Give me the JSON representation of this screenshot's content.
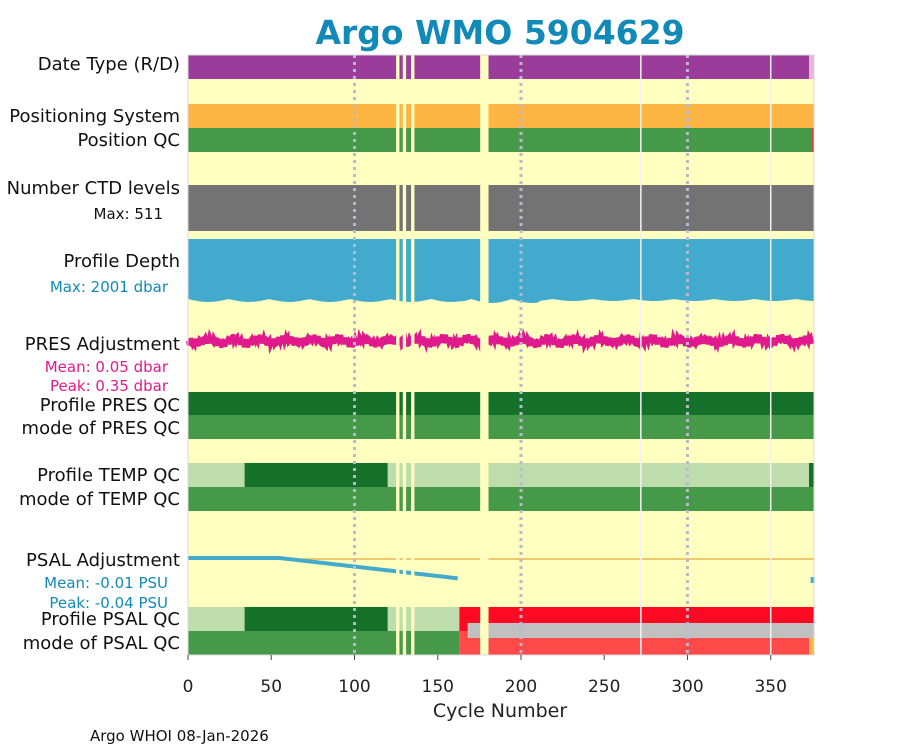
{
  "chart_data": {
    "type": "timeline",
    "title": "Argo WMO 5904629",
    "xlabel": "Cycle Number",
    "xlim": [
      0,
      376
    ],
    "xticks": [
      0,
      50,
      100,
      150,
      200,
      250,
      300,
      350
    ],
    "footer": "Argo WHOI 08-Jan-2026",
    "colors": {
      "background": "#ffffc0",
      "title": "#118ab8",
      "pink": "#e01a8c",
      "blue": "#42aacd",
      "purple": "#9b3c9b",
      "orange": "#fdb643",
      "green": "#47994a",
      "dark_green": "#157029",
      "light_green": "#bfdcad",
      "gray": "#737373",
      "red": "#ff0a22",
      "light_red": "#ff4a4a",
      "light_gray": "#c0c0c0",
      "zero_line": "#e9b552"
    },
    "gaps": [
      126,
      130,
      135,
      176,
      177,
      178,
      179,
      180
    ],
    "rows": [
      {
        "key": "date_type",
        "label": "Date Type (R/D)",
        "color": "purple",
        "segments": [
          [
            0,
            373,
            "purple"
          ],
          [
            373,
            376,
            "light_pink"
          ]
        ]
      },
      {
        "key": "positioning_system",
        "label": "Positioning System",
        "color": "orange",
        "segments": [
          [
            0,
            376,
            "orange"
          ]
        ]
      },
      {
        "key": "position_qc",
        "label": "Position QC",
        "color": "green",
        "segments": [
          [
            0,
            375,
            "green"
          ],
          [
            375,
            376,
            "red"
          ]
        ]
      },
      {
        "key": "n_ctd_levels",
        "label": "Number CTD levels",
        "sublabel": "Max: 511",
        "color": "gray",
        "segments": [
          [
            0,
            376,
            "gray"
          ]
        ]
      },
      {
        "key": "profile_depth",
        "label": "Profile Depth",
        "sublabel": "Max: 2001 dbar",
        "color": "blue",
        "segments": [
          [
            0,
            376,
            "blue"
          ]
        ]
      },
      {
        "key": "pres_adjustment",
        "label": "PRES Adjustment",
        "sublabel": [
          "Mean: 0.05 dbar",
          "Peak: 0.35 dbar"
        ],
        "mean": 0.05,
        "peak": 0.35,
        "units": "dbar"
      },
      {
        "key": "profile_pres_qc",
        "label": "Profile PRES QC",
        "segments": [
          [
            0,
            376,
            "dark_green"
          ]
        ]
      },
      {
        "key": "mode_pres_qc",
        "label": "mode of PRES QC",
        "segments": [
          [
            0,
            376,
            "green"
          ]
        ]
      },
      {
        "key": "profile_temp_qc",
        "label": "Profile TEMP QC",
        "segments": [
          [
            0,
            34,
            "light_green"
          ],
          [
            34,
            120,
            "dark_green"
          ],
          [
            120,
            373,
            "light_green"
          ],
          [
            373,
            376,
            "dark_green"
          ]
        ]
      },
      {
        "key": "mode_temp_qc",
        "label": "mode of TEMP QC",
        "segments": [
          [
            0,
            376,
            "green"
          ]
        ]
      },
      {
        "key": "psal_adjustment",
        "label": "PSAL Adjustment",
        "sublabel": [
          "Mean: -0.01 PSU",
          "Peak: -0.04 PSU"
        ],
        "mean": -0.01,
        "peak": -0.04,
        "units": "PSU"
      },
      {
        "key": "profile_psal_qc",
        "label": "Profile PSAL QC",
        "segments": [
          [
            0,
            34,
            "light_green"
          ],
          [
            34,
            120,
            "dark_green"
          ],
          [
            120,
            163,
            "light_green"
          ],
          [
            163,
            376,
            "red"
          ]
        ]
      },
      {
        "key": "mode_psal_qc",
        "label": "mode of PSAL QC",
        "segments": [
          [
            0,
            163,
            "green"
          ],
          [
            163,
            373,
            "light_red"
          ],
          [
            373,
            376,
            "orange"
          ]
        ]
      }
    ],
    "psal_gray_band": [
      168,
      376
    ],
    "vgrid_dotted": [
      100,
      200,
      300
    ],
    "vgrid_solid": [
      272,
      350
    ]
  }
}
